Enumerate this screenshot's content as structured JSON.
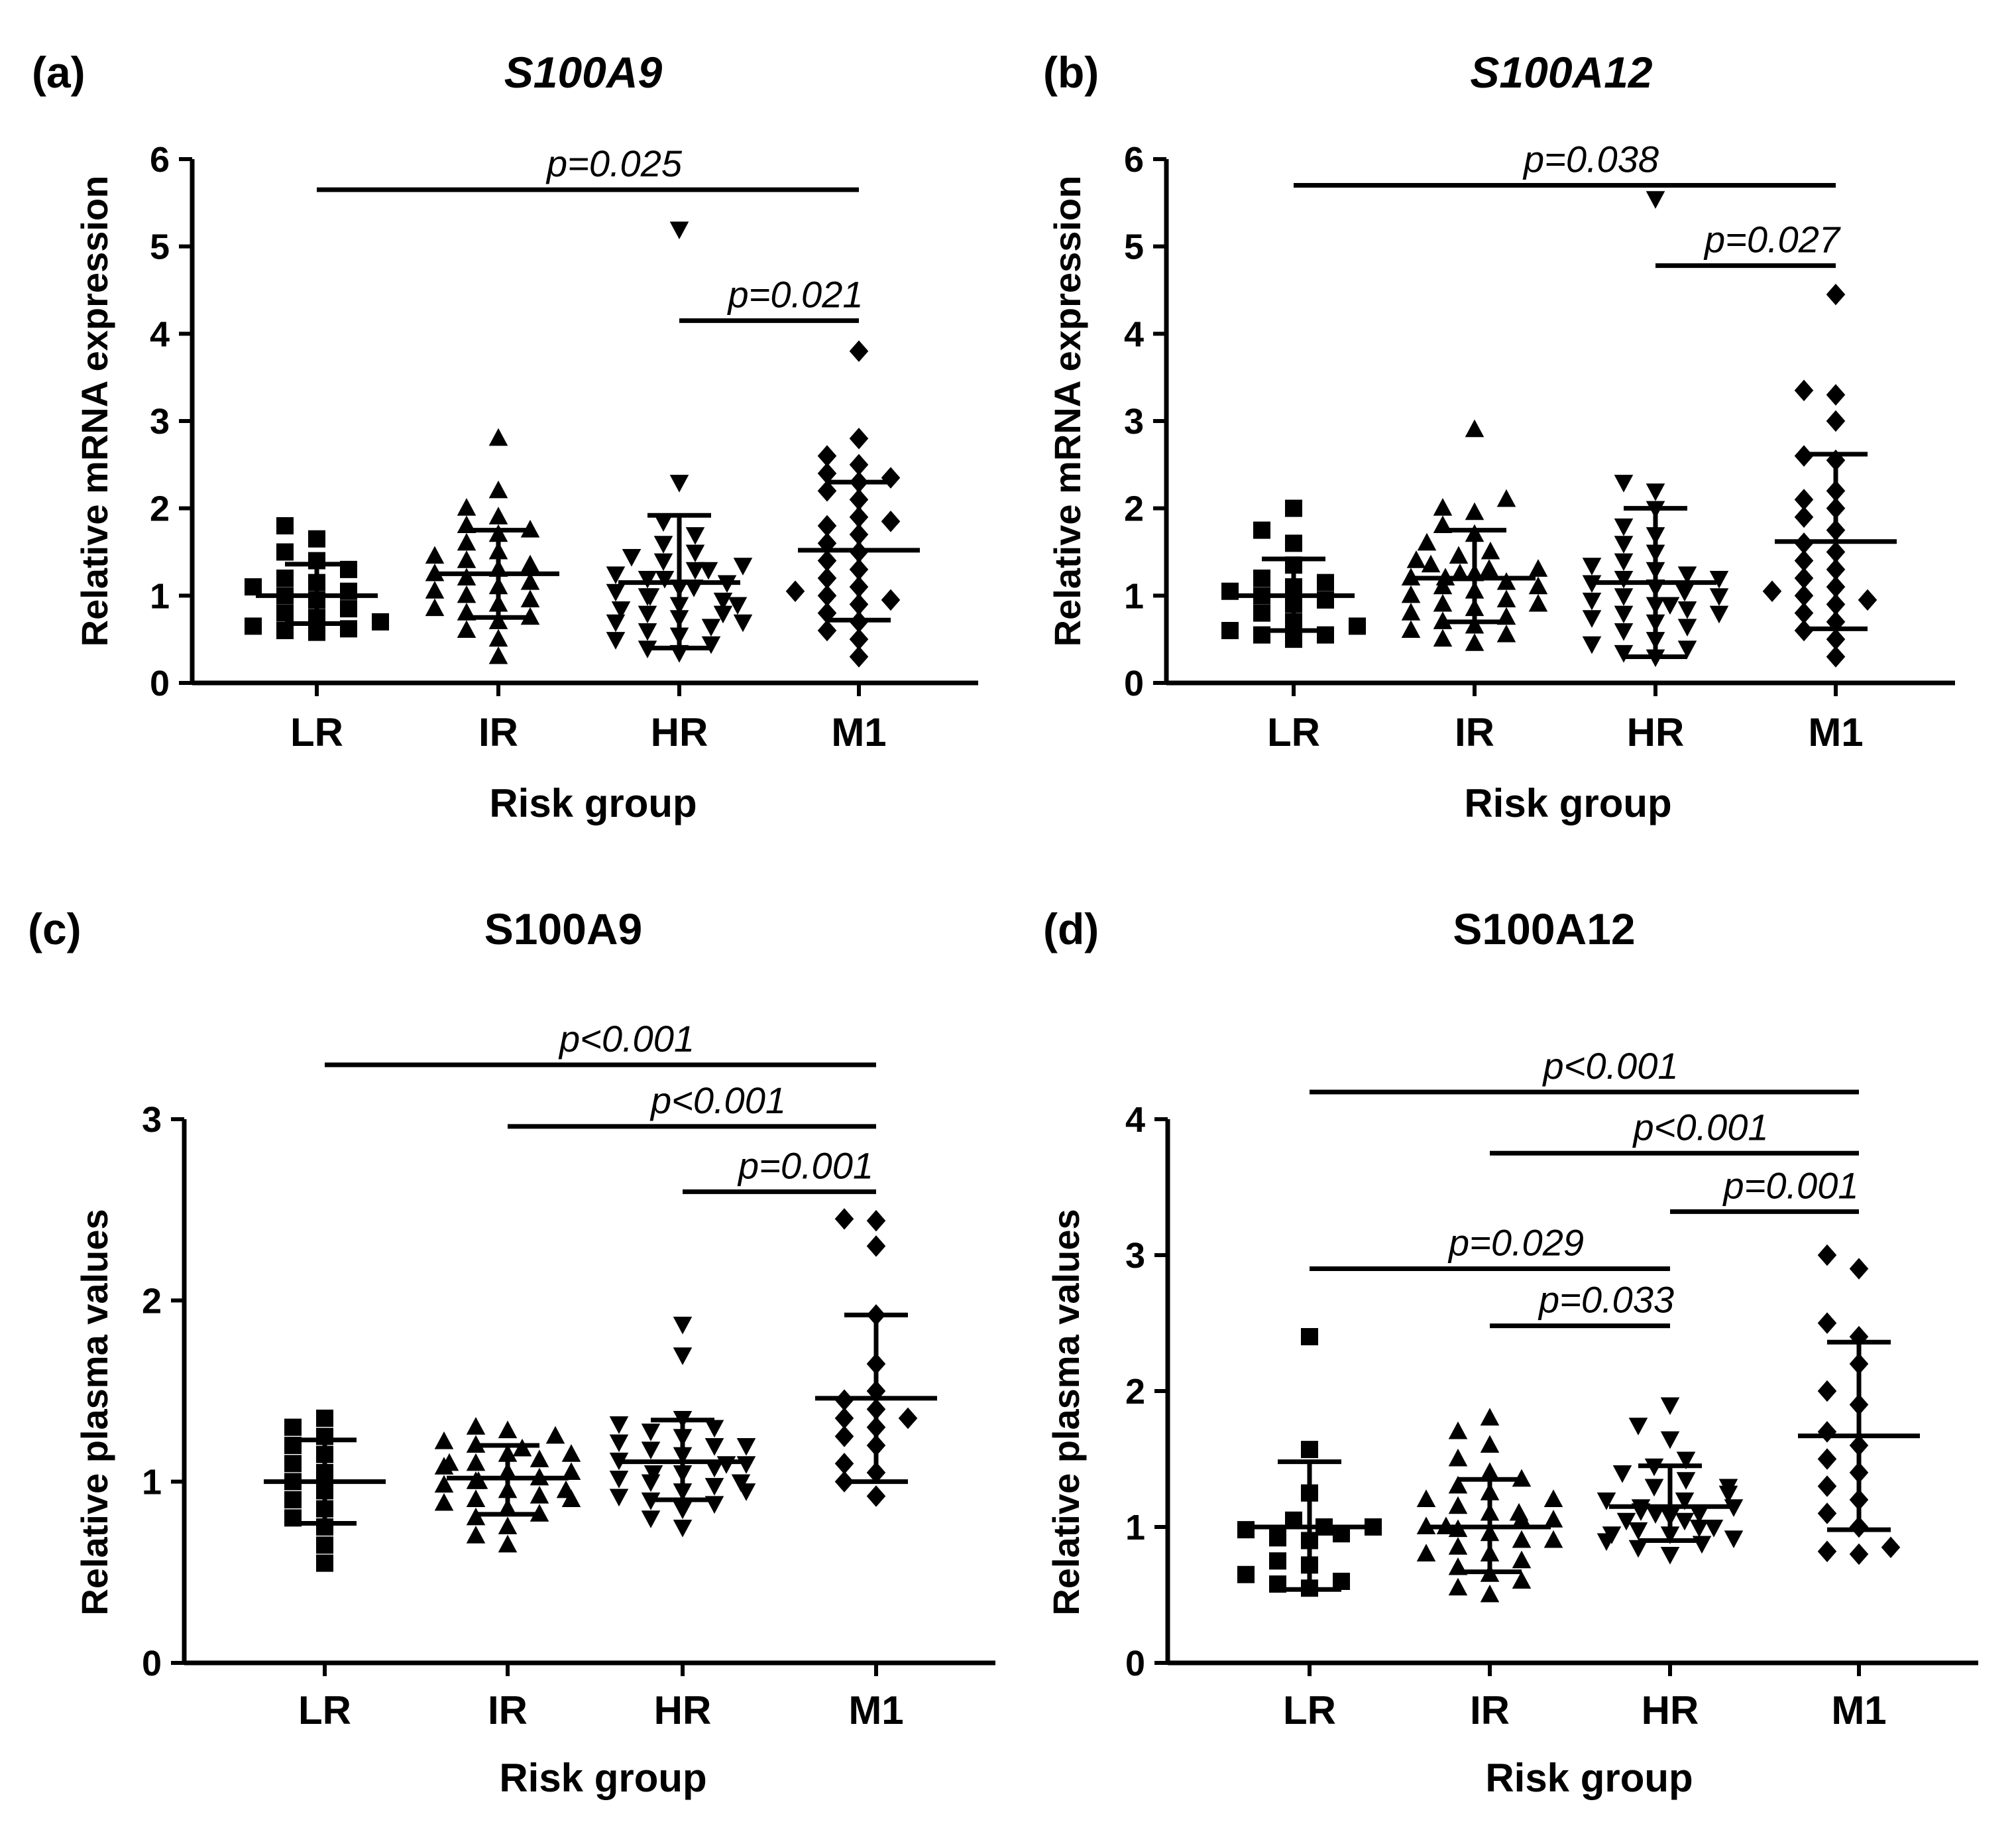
{
  "figure_title": "S100A9 and S100A12 by risk group",
  "chart_data": [
    {
      "id": "a",
      "type": "scatter",
      "panel_label": "(a)",
      "title": "S100A9",
      "title_italic": true,
      "ylabel": "Relative mRNA expression",
      "xlabel": "Risk group",
      "ylim": [
        0,
        6
      ],
      "yticks": [
        "0",
        "1",
        "2",
        "3",
        "4",
        "5",
        "6"
      ],
      "categories": [
        "LR",
        "IR",
        "HR",
        "M1"
      ],
      "markers": [
        "square",
        "triangle-up",
        "triangle-down",
        "diamond"
      ],
      "groups": [
        {
          "name": "LR",
          "mean": 1.0,
          "sd_low": 0.68,
          "sd_high": 1.36,
          "values": [
            1.8,
            1.65,
            1.5,
            1.4,
            1.3,
            1.2,
            1.15,
            1.1,
            1.05,
            1.0,
            0.95,
            0.85,
            0.8,
            0.75,
            0.7,
            0.65,
            0.62,
            0.6,
            0.58
          ]
        },
        {
          "name": "IR",
          "mean": 1.25,
          "sd_low": 0.75,
          "sd_high": 1.75,
          "values": [
            2.8,
            2.2,
            2.0,
            1.9,
            1.8,
            1.75,
            1.7,
            1.6,
            1.5,
            1.45,
            1.4,
            1.35,
            1.3,
            1.25,
            1.2,
            1.15,
            1.1,
            1.05,
            1.0,
            0.95,
            0.9,
            0.85,
            0.8,
            0.75,
            0.7,
            0.6,
            0.5,
            0.3
          ]
        },
        {
          "name": "HR",
          "mean": 1.15,
          "sd_low": 0.4,
          "sd_high": 1.92,
          "values": [
            5.2,
            2.3,
            1.85,
            1.7,
            1.6,
            1.5,
            1.45,
            1.4,
            1.35,
            1.3,
            1.25,
            1.2,
            1.15,
            1.1,
            1.05,
            1.0,
            0.95,
            0.9,
            0.85,
            0.8,
            0.75,
            0.7,
            0.65,
            0.6,
            0.55,
            0.5,
            0.45,
            0.4,
            0.35,
            1.0,
            1.2,
            0.9,
            1.1,
            1.3,
            0.8,
            0.7
          ]
        },
        {
          "name": "M1",
          "mean": 1.52,
          "sd_low": 0.72,
          "sd_high": 2.3,
          "values": [
            3.8,
            2.8,
            2.6,
            2.5,
            2.4,
            2.35,
            2.3,
            2.2,
            2.1,
            1.9,
            1.8,
            1.7,
            1.6,
            1.5,
            1.4,
            1.3,
            1.2,
            1.1,
            1.0,
            0.9,
            0.8,
            0.7,
            0.6,
            0.5,
            0.3,
            1.85,
            1.05,
            0.95
          ]
        }
      ],
      "comparisons": [
        {
          "from": "LR",
          "to": "M1",
          "label": "p=0.025",
          "y": 5.65
        },
        {
          "from": "HR",
          "to": "M1",
          "label": "p=0.021",
          "y": 4.15
        }
      ]
    },
    {
      "id": "b",
      "type": "scatter",
      "panel_label": "(b)",
      "title": "S100A12",
      "title_italic": true,
      "ylabel": "Relative mRNA expression",
      "xlabel": "Risk group",
      "ylim": [
        0,
        6
      ],
      "yticks": [
        "0",
        "1",
        "2",
        "3",
        "4",
        "5",
        "6"
      ],
      "categories": [
        "LR",
        "IR",
        "HR",
        "M1"
      ],
      "markers": [
        "square",
        "triangle-up",
        "triangle-down",
        "diamond"
      ],
      "groups": [
        {
          "name": "LR",
          "mean": 1.0,
          "sd_low": 0.6,
          "sd_high": 1.42,
          "values": [
            2.0,
            1.75,
            1.6,
            1.35,
            1.2,
            1.15,
            1.1,
            1.05,
            1.0,
            0.95,
            0.9,
            0.8,
            0.7,
            0.65,
            0.6,
            0.55,
            0.5,
            0.55
          ]
        },
        {
          "name": "IR",
          "mean": 1.2,
          "sd_low": 0.7,
          "sd_high": 1.75,
          "values": [
            2.9,
            2.1,
            2.0,
            1.95,
            1.8,
            1.7,
            1.6,
            1.5,
            1.45,
            1.4,
            1.35,
            1.3,
            1.25,
            1.2,
            1.15,
            1.1,
            1.05,
            1.0,
            0.95,
            0.9,
            0.85,
            0.8,
            0.75,
            0.7,
            0.65,
            0.6,
            0.55,
            0.5,
            0.45,
            1.2,
            1.25,
            1.1,
            1.3,
            0.9
          ]
        },
        {
          "name": "HR",
          "mean": 1.15,
          "sd_low": 0.3,
          "sd_high": 2.0,
          "values": [
            5.55,
            2.3,
            2.2,
            2.0,
            1.8,
            1.7,
            1.6,
            1.5,
            1.4,
            1.35,
            1.3,
            1.25,
            1.2,
            1.15,
            1.1,
            1.05,
            1.0,
            0.95,
            0.9,
            0.85,
            0.8,
            0.75,
            0.7,
            0.65,
            0.6,
            0.5,
            0.45,
            0.4,
            0.35,
            0.3,
            1.0,
            1.1,
            0.9,
            1.2,
            0.8
          ]
        },
        {
          "name": "M1",
          "mean": 1.62,
          "sd_low": 0.62,
          "sd_high": 2.62,
          "values": [
            4.45,
            3.35,
            3.3,
            3.0,
            2.6,
            2.55,
            2.2,
            2.1,
            2.0,
            1.9,
            1.75,
            1.6,
            1.5,
            1.4,
            1.3,
            1.2,
            1.1,
            1.0,
            0.9,
            0.8,
            0.7,
            0.6,
            0.5,
            0.3,
            1.05,
            0.95
          ]
        }
      ],
      "comparisons": [
        {
          "from": "LR",
          "to": "M1",
          "label": "p=0.038",
          "y": 5.7
        },
        {
          "from": "HR",
          "to": "M1",
          "label": "p=0.027",
          "y": 4.78
        }
      ]
    },
    {
      "id": "c",
      "type": "scatter",
      "panel_label": "(c)",
      "title": "S100A9",
      "title_italic": false,
      "ylabel": "Relative plasma values",
      "xlabel": "Risk group",
      "ylim": [
        0,
        3
      ],
      "yticks": [
        "0",
        "1",
        "2",
        "3"
      ],
      "categories": [
        "LR",
        "IR",
        "HR",
        "M1"
      ],
      "markers": [
        "square",
        "triangle-up",
        "triangle-down",
        "diamond"
      ],
      "groups": [
        {
          "name": "LR",
          "mean": 1.0,
          "sd_low": 0.77,
          "sd_high": 1.23,
          "values": [
            1.35,
            1.3,
            1.25,
            1.2,
            1.15,
            1.1,
            1.05,
            1.0,
            0.95,
            0.9,
            0.85,
            0.8,
            0.75,
            0.65,
            0.55
          ]
        },
        {
          "name": "IR",
          "mean": 1.02,
          "sd_low": 0.82,
          "sd_high": 1.2,
          "values": [
            1.3,
            1.28,
            1.25,
            1.22,
            1.2,
            1.18,
            1.15,
            1.12,
            1.1,
            1.08,
            1.05,
            1.02,
            1.0,
            0.98,
            0.95,
            0.92,
            0.9,
            0.88,
            0.85,
            0.82,
            0.8,
            0.75,
            0.7,
            0.65,
            1.15,
            1.05,
            0.95,
            1.1,
            0.9,
            1.0
          ]
        },
        {
          "name": "HR",
          "mean": 1.11,
          "sd_low": 0.9,
          "sd_high": 1.34,
          "values": [
            1.87,
            1.7,
            1.35,
            1.32,
            1.3,
            1.28,
            1.25,
            1.22,
            1.2,
            1.18,
            1.15,
            1.12,
            1.1,
            1.08,
            1.05,
            1.02,
            1.0,
            0.98,
            0.95,
            0.92,
            0.9,
            0.88,
            0.85,
            0.8,
            0.75,
            1.1,
            1.0,
            1.2,
            0.95,
            1.05
          ]
        },
        {
          "name": "M1",
          "mean": 1.46,
          "sd_low": 1.0,
          "sd_high": 1.92,
          "values": [
            2.45,
            2.44,
            2.3,
            1.92,
            1.65,
            1.5,
            1.45,
            1.4,
            1.35,
            1.3,
            1.25,
            1.2,
            1.1,
            1.05,
            1.0,
            0.92,
            1.35
          ]
        }
      ],
      "comparisons": [
        {
          "from": "LR",
          "to": "M1",
          "label": "p<0.001",
          "y": 3.3
        },
        {
          "from": "IR",
          "to": "M1",
          "label": "p<0.001",
          "y": 2.96
        },
        {
          "from": "HR",
          "to": "M1",
          "label": "p=0.001",
          "y": 2.6
        }
      ]
    },
    {
      "id": "d",
      "type": "scatter",
      "panel_label": "(d)",
      "title": "S100A12",
      "title_italic": false,
      "ylabel": "Relative plasma values",
      "xlabel": "Risk group",
      "ylim": [
        0,
        4
      ],
      "yticks": [
        "0",
        "1",
        "2",
        "3",
        "4"
      ],
      "categories": [
        "LR",
        "IR",
        "HR",
        "M1"
      ],
      "markers": [
        "square",
        "triangle-up",
        "triangle-down",
        "diamond"
      ],
      "groups": [
        {
          "name": "LR",
          "mean": 1.0,
          "sd_low": 0.54,
          "sd_high": 1.48,
          "values": [
            2.4,
            1.57,
            1.25,
            1.05,
            1.0,
            1.0,
            0.98,
            0.95,
            0.92,
            0.9,
            0.75,
            0.72,
            0.65,
            0.6,
            0.58,
            0.55
          ]
        },
        {
          "name": "IR",
          "mean": 1.0,
          "sd_low": 0.67,
          "sd_high": 1.35,
          "values": [
            1.8,
            1.7,
            1.6,
            1.5,
            1.4,
            1.35,
            1.3,
            1.25,
            1.2,
            1.15,
            1.1,
            1.05,
            1.0,
            0.98,
            0.95,
            0.9,
            0.85,
            0.8,
            0.75,
            0.7,
            0.65,
            0.6,
            0.55,
            0.5,
            1.1,
            0.9,
            1.2,
            0.8,
            1.0,
            1.05
          ]
        },
        {
          "name": "HR",
          "mean": 1.15,
          "sd_low": 0.9,
          "sd_high": 1.45,
          "values": [
            1.9,
            1.75,
            1.65,
            1.5,
            1.45,
            1.4,
            1.35,
            1.3,
            1.25,
            1.2,
            1.15,
            1.12,
            1.1,
            1.08,
            1.05,
            1.0,
            0.98,
            0.95,
            0.92,
            0.9,
            0.88,
            0.85,
            0.8,
            1.2,
            1.1,
            1.0,
            1.3,
            0.95,
            1.05,
            1.15
          ]
        },
        {
          "name": "M1",
          "mean": 1.67,
          "sd_low": 0.98,
          "sd_high": 2.36,
          "values": [
            3.0,
            2.9,
            2.5,
            2.4,
            2.2,
            2.0,
            1.9,
            1.7,
            1.6,
            1.5,
            1.4,
            1.3,
            1.2,
            1.1,
            1.0,
            0.85,
            0.82,
            0.8
          ]
        }
      ],
      "comparisons": [
        {
          "from": "LR",
          "to": "M1",
          "label": "p<0.001",
          "y": 4.2
        },
        {
          "from": "IR",
          "to": "M1",
          "label": "p<0.001",
          "y": 3.75
        },
        {
          "from": "HR",
          "to": "M1",
          "label": "p=0.001",
          "y": 3.32
        },
        {
          "from": "LR",
          "to": "HR",
          "label": "p=0.029",
          "y": 2.9
        },
        {
          "from": "IR",
          "to": "HR",
          "label": "p=0.033",
          "y": 2.48
        }
      ]
    }
  ]
}
